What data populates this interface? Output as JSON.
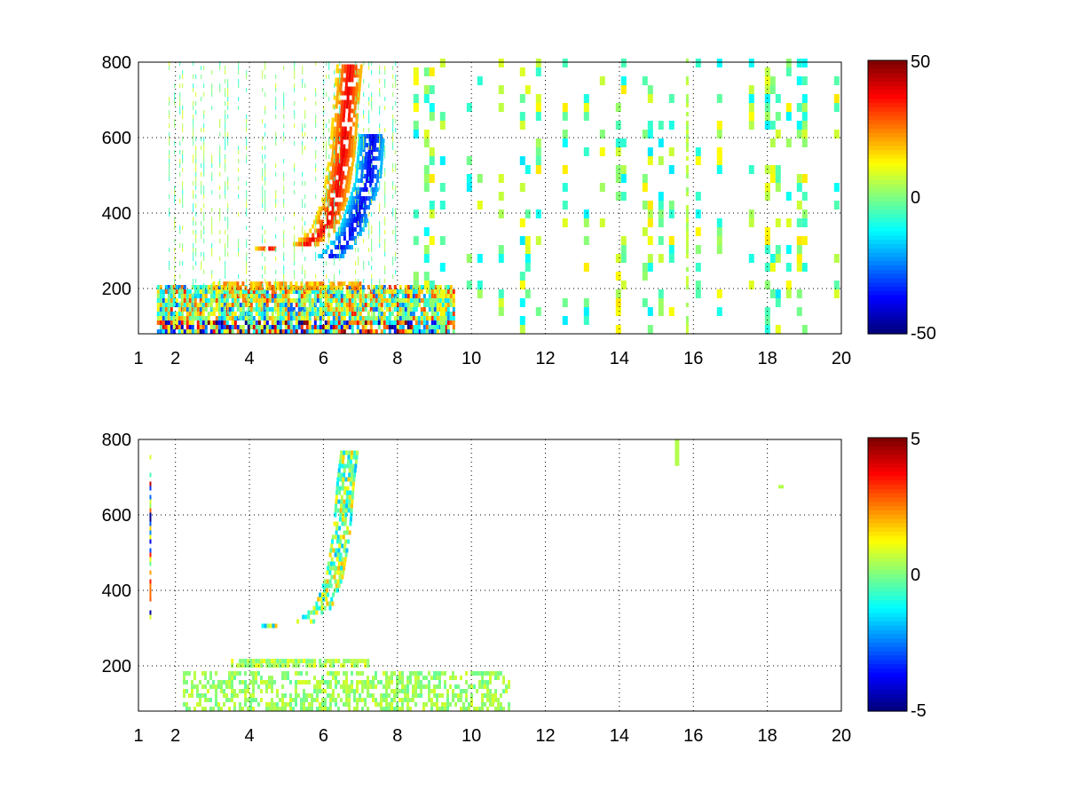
{
  "figure": {
    "background": "#ffffff",
    "colormap": "jet",
    "grid": true,
    "grid_style": "dotted"
  },
  "chart_data": [
    {
      "type": "heatmap",
      "title": "",
      "xlabel": "",
      "ylabel": "",
      "xlim": [
        1,
        20
      ],
      "ylim": [
        80,
        800
      ],
      "xticks": [
        1,
        2,
        4,
        6,
        8,
        10,
        12,
        14,
        16,
        18,
        20
      ],
      "yticks": [
        200,
        400,
        600,
        800
      ],
      "xtick_labels": [
        "1",
        "2",
        "4",
        "6",
        "8",
        "10",
        "12",
        "14",
        "16",
        "18",
        "20"
      ],
      "ytick_labels": [
        "200",
        "400",
        "600",
        "800"
      ],
      "colorbar": {
        "min": -50,
        "max": 50,
        "tick_labels": [
          "50",
          "0",
          "-50"
        ]
      },
      "features": [
        {
          "name": "low-frequency band",
          "x_range": [
            1.5,
            9.5
          ],
          "y_range": [
            80,
            200
          ],
          "value_range": [
            -50,
            50
          ],
          "note": "strong mixed positive/negative values near y=100"
        },
        {
          "name": "second band",
          "x_range": [
            3,
            7
          ],
          "y_range": [
            195,
            215
          ],
          "value": 20
        },
        {
          "name": "positive curved ridge",
          "points": [
            [
              4.5,
              300
            ],
            [
              5.5,
              310
            ],
            [
              6.0,
              350
            ],
            [
              6.3,
              430
            ],
            [
              6.5,
              550
            ],
            [
              6.6,
              680
            ],
            [
              6.7,
              790
            ]
          ],
          "value": 40
        },
        {
          "name": "negative curved ridge",
          "points": [
            [
              6.2,
              280
            ],
            [
              6.5,
              310
            ],
            [
              6.8,
              360
            ],
            [
              7.0,
              420
            ],
            [
              7.2,
              480
            ],
            [
              7.3,
              600
            ]
          ],
          "value": -40
        },
        {
          "name": "sparse scattered columns",
          "x_range": [
            8,
            20
          ],
          "y_range": [
            80,
            800
          ],
          "value_range": [
            -15,
            15
          ]
        },
        {
          "name": "dense column at x=15.9",
          "x_range": [
            15.8,
            16.0
          ],
          "y_range": [
            80,
            800
          ],
          "value": 5
        }
      ]
    },
    {
      "type": "heatmap",
      "title": "",
      "xlabel": "",
      "ylabel": "",
      "xlim": [
        1,
        20
      ],
      "ylim": [
        80,
        800
      ],
      "xticks": [
        1,
        2,
        4,
        6,
        8,
        10,
        12,
        14,
        16,
        18,
        20
      ],
      "yticks": [
        200,
        400,
        600,
        800
      ],
      "xtick_labels": [
        "1",
        "2",
        "4",
        "6",
        "8",
        "10",
        "12",
        "14",
        "16",
        "18",
        "20"
      ],
      "ytick_labels": [
        "200",
        "400",
        "600",
        "800"
      ],
      "colorbar": {
        "min": -5,
        "max": 5,
        "tick_labels": [
          "5",
          "0",
          "-5"
        ]
      },
      "features": [
        {
          "name": "low-frequency band",
          "x_range": [
            2.2,
            11
          ],
          "y_range": [
            80,
            180
          ],
          "value_range": [
            -1,
            1
          ]
        },
        {
          "name": "second band",
          "x_range": [
            3.5,
            7.2
          ],
          "y_range": [
            195,
            210
          ],
          "value": 0.5
        },
        {
          "name": "curved ridge",
          "points": [
            [
              4.5,
              300
            ],
            [
              5.5,
              310
            ],
            [
              6.0,
              350
            ],
            [
              6.3,
              430
            ],
            [
              6.5,
              550
            ],
            [
              6.6,
              680
            ],
            [
              6.7,
              760
            ]
          ],
          "value_range": [
            -2,
            2
          ]
        },
        {
          "name": "narrow column near x=1.35",
          "x_range": [
            1.3,
            1.4
          ],
          "y_range": [
            300,
            750
          ],
          "value_range": [
            -5,
            5
          ]
        },
        {
          "name": "sparse spots",
          "x_range": [
            15.5,
            18.5
          ],
          "y_range": [
            670,
            800
          ],
          "value": 0.5
        }
      ]
    }
  ]
}
